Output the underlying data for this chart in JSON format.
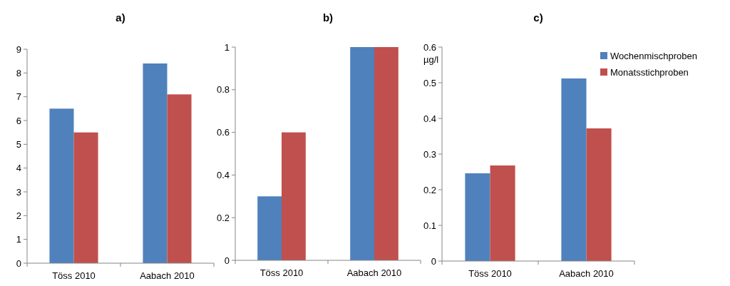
{
  "chart_data": [
    {
      "type": "bar",
      "title": "a)",
      "categories": [
        "Töss 2010",
        "Aabach 2010"
      ],
      "series": [
        {
          "color": "#4f81bd",
          "values": [
            6.5,
            8.4
          ]
        },
        {
          "color": "#c0504d",
          "values": [
            5.5,
            7.1
          ]
        }
      ],
      "ylim": [
        0,
        9
      ],
      "yticks": [
        0,
        1,
        2,
        3,
        4,
        5,
        6,
        7,
        8,
        9
      ],
      "grid": false,
      "legend": false
    },
    {
      "type": "bar",
      "title": "b)",
      "categories": [
        "Töss 2010",
        "Aabach 2010"
      ],
      "series": [
        {
          "color": "#4f81bd",
          "values": [
            0.3,
            1
          ]
        },
        {
          "color": "#c0504d",
          "values": [
            0.6,
            1
          ]
        }
      ],
      "ylim": [
        0,
        1
      ],
      "yticks": [
        0,
        0.2,
        0.4,
        0.6,
        0.8,
        1
      ],
      "grid": false,
      "legend": false
    },
    {
      "type": "bar",
      "title": "c)",
      "ylabel": "µg/l",
      "categories": [
        "Töss 2010",
        "Aabach 2010"
      ],
      "series": [
        {
          "name": "Wochenmischproben",
          "color": "#4f81bd",
          "values": [
            0.246,
            0.512
          ]
        },
        {
          "name": "Monatsstichproben",
          "color": "#c0504d",
          "values": [
            0.268,
            0.372
          ]
        }
      ],
      "ylim": [
        0,
        0.6
      ],
      "yticks": [
        0,
        0.1,
        0.2,
        0.3,
        0.4,
        0.5,
        0.6
      ],
      "grid": false,
      "legend": "top right"
    }
  ]
}
